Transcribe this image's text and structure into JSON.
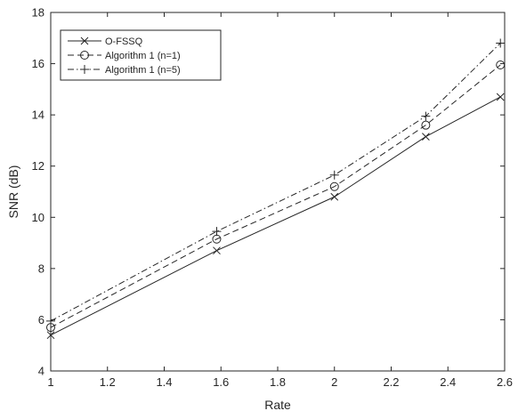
{
  "chart_data": {
    "type": "line",
    "xlabel": "Rate",
    "ylabel": "SNR (dB)",
    "xlim": [
      1,
      2.6
    ],
    "ylim": [
      4,
      18
    ],
    "xticks": [
      1,
      1.2,
      1.4,
      1.6,
      1.8,
      2,
      2.2,
      2.4,
      2.6
    ],
    "xtick_labels": [
      "1",
      "1.2",
      "1.4",
      "1.6",
      "1.8",
      "2",
      "2.2",
      "2.4",
      "2.6"
    ],
    "yticks": [
      4,
      6,
      8,
      10,
      12,
      14,
      16,
      18
    ],
    "ytick_labels": [
      "4",
      "6",
      "8",
      "10",
      "12",
      "14",
      "16",
      "18"
    ],
    "grid": false,
    "legend_position": "top-left",
    "x": [
      1,
      1.585,
      2,
      2.322,
      2.585
    ],
    "series": [
      {
        "name": "O-FSSQ",
        "line_style": "solid",
        "marker": "x",
        "values": [
          5.4,
          8.7,
          10.8,
          13.15,
          14.7
        ]
      },
      {
        "name": "Algorithm 1 (n=1)",
        "line_style": "dashed",
        "marker": "circle",
        "values": [
          5.7,
          9.15,
          11.2,
          13.6,
          15.95
        ]
      },
      {
        "name": "Algorithm 1 (n=5)",
        "line_style": "dashdot",
        "marker": "plus",
        "values": [
          5.95,
          9.45,
          11.65,
          13.95,
          16.8
        ]
      }
    ],
    "colors": {
      "line": "#262626",
      "axes": "#262626",
      "background": "#ffffff"
    }
  }
}
